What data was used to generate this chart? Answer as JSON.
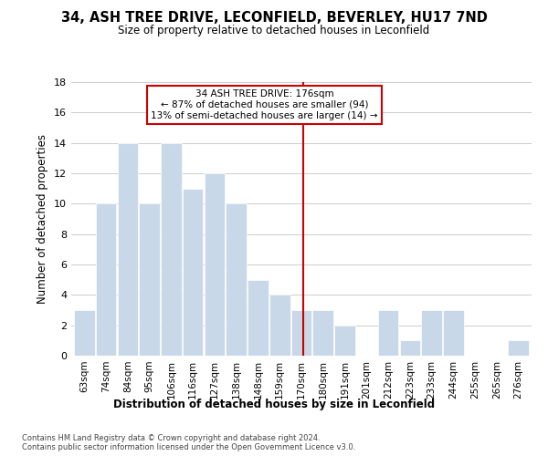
{
  "title": "34, ASH TREE DRIVE, LECONFIELD, BEVERLEY, HU17 7ND",
  "subtitle": "Size of property relative to detached houses in Leconfield",
  "xlabel": "Distribution of detached houses by size in Leconfield",
  "ylabel": "Number of detached properties",
  "categories": [
    "63sqm",
    "74sqm",
    "84sqm",
    "95sqm",
    "106sqm",
    "116sqm",
    "127sqm",
    "138sqm",
    "148sqm",
    "159sqm",
    "170sqm",
    "180sqm",
    "191sqm",
    "201sqm",
    "212sqm",
    "223sqm",
    "233sqm",
    "244sqm",
    "255sqm",
    "265sqm",
    "276sqm"
  ],
  "values": [
    3,
    10,
    14,
    10,
    14,
    11,
    12,
    10,
    5,
    4,
    3,
    3,
    2,
    0,
    3,
    1,
    3,
    3,
    0,
    0,
    1
  ],
  "bar_color": "#c8d8e8",
  "bar_edgecolor": "#ffffff",
  "grid_color": "#cccccc",
  "vline_color": "#cc0000",
  "annotation_text": "34 ASH TREE DRIVE: 176sqm\n← 87% of detached houses are smaller (94)\n13% of semi-detached houses are larger (14) →",
  "annotation_box_color": "#cc0000",
  "ylim": [
    0,
    18
  ],
  "yticks": [
    0,
    2,
    4,
    6,
    8,
    10,
    12,
    14,
    16,
    18
  ],
  "footnote": "Contains HM Land Registry data © Crown copyright and database right 2024.\nContains public sector information licensed under the Open Government Licence v3.0."
}
